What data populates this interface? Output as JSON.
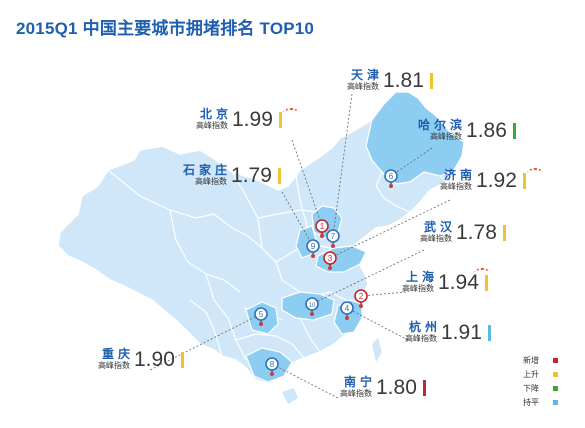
{
  "title": "2015Q1 中国主要城市拥堵排名 TOP10",
  "sub_label": "高峰指数",
  "colors": {
    "new": "#c0272d",
    "up": "#f2c12e",
    "down": "#3aaa35",
    "flat": "#5bb6ea",
    "map_fill": "#cfe7f8",
    "map_highlight": "#8ecdf2",
    "map_border": "#ffffff",
    "pin_blue": "#2f73b8",
    "pin_red": "#c0272d",
    "leader": "#666666"
  },
  "cities": [
    {
      "name": "天津",
      "value": "1.81",
      "status": "up",
      "rank": "7"
    },
    {
      "name": "北京",
      "value": "1.99",
      "status": "up",
      "rank": "1"
    },
    {
      "name": "哈尔滨",
      "value": "1.86",
      "status": "down",
      "rank": "6"
    },
    {
      "name": "石家庄",
      "value": "1.79",
      "status": "up",
      "rank": "9"
    },
    {
      "name": "济南",
      "value": "1.92",
      "status": "up",
      "rank": "3"
    },
    {
      "name": "武汉",
      "value": "1.78",
      "status": "up",
      "rank": "10"
    },
    {
      "name": "上海",
      "value": "1.94",
      "status": "up",
      "rank": "2"
    },
    {
      "name": "杭州",
      "value": "1.91",
      "status": "flat",
      "rank": "4"
    },
    {
      "name": "重庆",
      "value": "1.90",
      "status": "up",
      "rank": "5"
    },
    {
      "name": "南宁",
      "value": "1.80",
      "status": "new",
      "rank": "8"
    }
  ],
  "legend": [
    {
      "label": "新增",
      "status": "new"
    },
    {
      "label": "上升",
      "status": "up"
    },
    {
      "label": "下降",
      "status": "down"
    },
    {
      "label": "持平",
      "status": "flat"
    }
  ]
}
